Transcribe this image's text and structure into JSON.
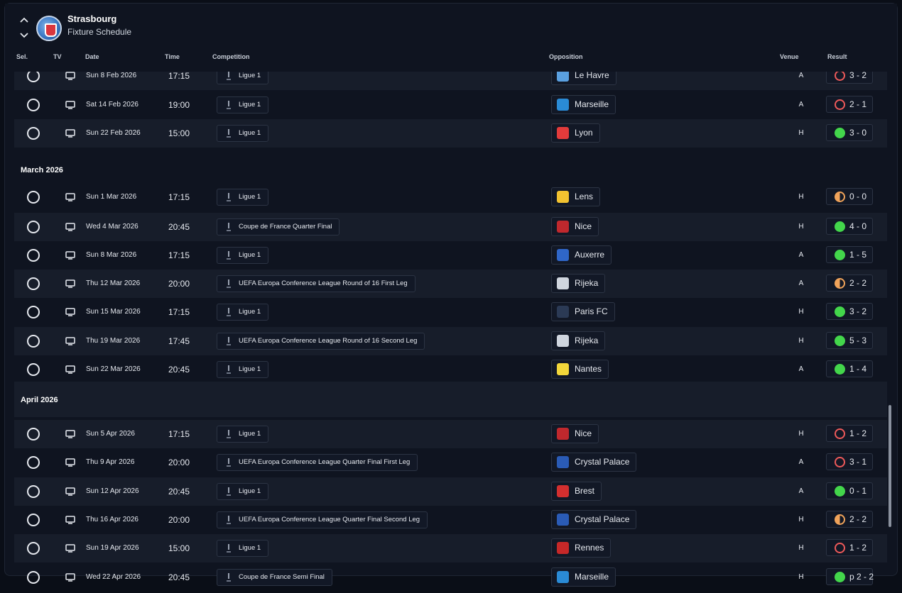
{
  "header": {
    "club": "Strasbourg",
    "subtitle": "Fixture Schedule"
  },
  "columns": {
    "sel": "Sel.",
    "tv": "TV",
    "date": "Date",
    "time": "Time",
    "competition": "Competition",
    "opposition": "Opposition",
    "venue": "Venue",
    "result": "Result"
  },
  "sections": {
    "march": "March 2026",
    "april": "April 2026"
  },
  "colors": {
    "win": "#43d64b",
    "loss": "#ef5a5a",
    "draw": "#f0a35a",
    "badges": {
      "le_havre": "#5aa0e0",
      "marseille": "#2a8bd6",
      "lyon": "#e23b3b",
      "lens": "#f2c230",
      "nice": "#c0282d",
      "auxerre": "#2f66c8",
      "rijeka": "#cfd5de",
      "paris_fc": "#2b3a55",
      "nantes": "#f2d63a",
      "crystal_palace": "#2a5bb6",
      "brest": "#d32f2f",
      "rennes": "#c62828"
    }
  },
  "fixtures": [
    {
      "date": "Sun 8 Feb 2026",
      "time": "17:15",
      "competition": "Ligue 1",
      "opposition": "Le Havre",
      "venue": "A",
      "result": "3 - 2",
      "outcome": "L"
    },
    {
      "date": "Sat 14 Feb 2026",
      "time": "19:00",
      "competition": "Ligue 1",
      "opposition": "Marseille",
      "venue": "A",
      "result": "2 - 1",
      "outcome": "L"
    },
    {
      "date": "Sun 22 Feb 2026",
      "time": "15:00",
      "competition": "Ligue 1",
      "opposition": "Lyon",
      "venue": "H",
      "result": "3 - 0",
      "outcome": "W"
    },
    {
      "date": "Sun 1 Mar 2026",
      "time": "17:15",
      "competition": "Ligue 1",
      "opposition": "Lens",
      "venue": "H",
      "result": "0 - 0",
      "outcome": "D"
    },
    {
      "date": "Wed 4 Mar 2026",
      "time": "20:45",
      "competition": "Coupe de France Quarter Final",
      "opposition": "Nice",
      "venue": "H",
      "result": "4 - 0",
      "outcome": "W"
    },
    {
      "date": "Sun 8 Mar 2026",
      "time": "17:15",
      "competition": "Ligue 1",
      "opposition": "Auxerre",
      "venue": "A",
      "result": "1 - 5",
      "outcome": "W"
    },
    {
      "date": "Thu 12 Mar 2026",
      "time": "20:00",
      "competition": "UEFA Europa Conference League Round of 16  First Leg",
      "opposition": "Rijeka",
      "venue": "A",
      "result": "2 - 2",
      "outcome": "D"
    },
    {
      "date": "Sun 15 Mar 2026",
      "time": "17:15",
      "competition": "Ligue 1",
      "opposition": "Paris FC",
      "venue": "H",
      "result": "3 - 2",
      "outcome": "W"
    },
    {
      "date": "Thu 19 Mar 2026",
      "time": "17:45",
      "competition": "UEFA Europa Conference League Round of 16  Second Leg",
      "opposition": "Rijeka",
      "venue": "H",
      "result": "5 - 3",
      "outcome": "W"
    },
    {
      "date": "Sun 22 Mar 2026",
      "time": "20:45",
      "competition": "Ligue 1",
      "opposition": "Nantes",
      "venue": "A",
      "result": "1 - 4",
      "outcome": "W"
    },
    {
      "date": "Sun 5 Apr 2026",
      "time": "17:15",
      "competition": "Ligue 1",
      "opposition": "Nice",
      "venue": "H",
      "result": "1 - 2",
      "outcome": "L"
    },
    {
      "date": "Thu 9 Apr 2026",
      "time": "20:00",
      "competition": "UEFA Europa Conference League Quarter Final First Leg",
      "opposition": "Crystal Palace",
      "venue": "A",
      "result": "3 - 1",
      "outcome": "L"
    },
    {
      "date": "Sun 12 Apr 2026",
      "time": "20:45",
      "competition": "Ligue 1",
      "opposition": "Brest",
      "venue": "A",
      "result": "0 - 1",
      "outcome": "W"
    },
    {
      "date": "Thu 16 Apr 2026",
      "time": "20:00",
      "competition": "UEFA Europa Conference League Quarter Final Second Leg",
      "opposition": "Crystal Palace",
      "venue": "H",
      "result": "2 - 2",
      "outcome": "D"
    },
    {
      "date": "Sun 19 Apr 2026",
      "time": "15:00",
      "competition": "Ligue 1",
      "opposition": "Rennes",
      "venue": "H",
      "result": "1 - 2",
      "outcome": "L"
    },
    {
      "date": "Wed 22 Apr 2026",
      "time": "20:45",
      "competition": "Coupe de France Semi Final",
      "opposition": "Marseille",
      "venue": "H",
      "result": "p 2 - 2",
      "outcome": "W"
    }
  ]
}
